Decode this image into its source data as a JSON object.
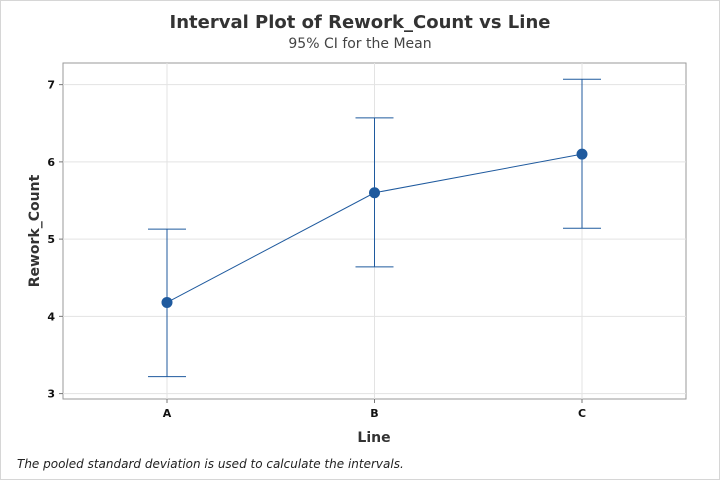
{
  "chart_data": {
    "type": "interval",
    "title": "Interval Plot of Rework_Count vs Line",
    "subtitle": "95% CI for the Mean",
    "xlabel": "Line",
    "ylabel": "Rework_Count",
    "categories": [
      "A",
      "B",
      "C"
    ],
    "means": [
      4.18,
      5.6,
      6.1
    ],
    "ci_lower": [
      3.22,
      4.64,
      5.14
    ],
    "ci_upper": [
      5.13,
      6.57,
      7.07
    ],
    "ylim": [
      2.93,
      7.28
    ],
    "yticks": [
      "3",
      "4",
      "5",
      "6",
      "7"
    ],
    "grid": true,
    "color": "#1f5a9e"
  },
  "footnote": "The pooled standard deviation is used to calculate the intervals."
}
